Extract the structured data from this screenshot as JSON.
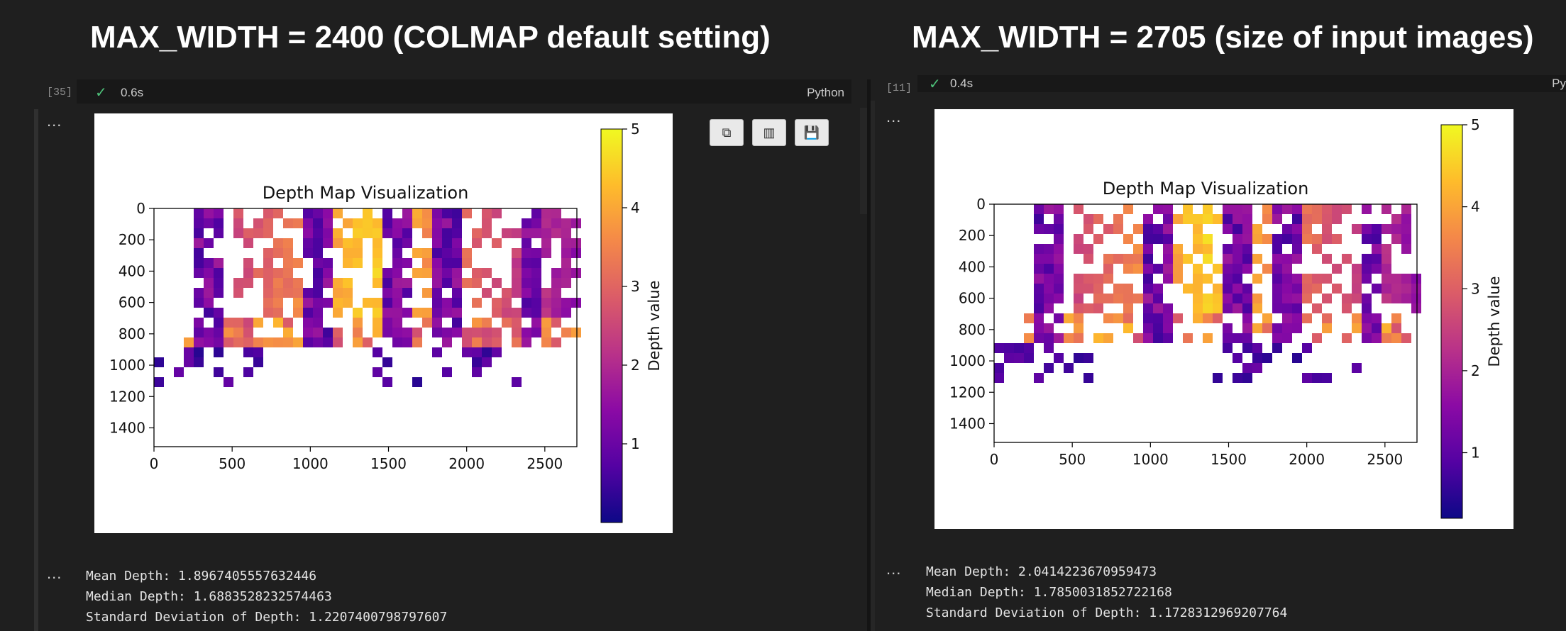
{
  "panels": [
    {
      "heading": "MAX_WIDTH = 2400 (COLMAP default setting)",
      "exec_count": "[35]",
      "run_time": "0.6s",
      "kernel": "Python",
      "stats": [
        "Mean Depth: 1.8967405557632446",
        "Median Depth: 1.6883528232574463",
        "Standard Deviation of Depth: 1.2207400798797607"
      ],
      "toolbar": {
        "copy": "copy-icon",
        "chart": "chart-icon",
        "save": "save-icon"
      }
    },
    {
      "heading": "MAX_WIDTH = 2705 (size of input images)",
      "exec_count": "[11]",
      "run_time": "0.4s",
      "kernel": "Py",
      "stats": [
        "Mean Depth: 2.0414223670959473",
        "Median Depth: 1.7850031852722168",
        "Standard Deviation of Depth: 1.1728312969207764"
      ]
    }
  ],
  "output_marker": "...",
  "chart_data": [
    {
      "type": "heatmap",
      "title": "Depth Map Visualization",
      "colormap": "plasma",
      "colorbar_label": "Depth value",
      "x_ticks": [
        0,
        500,
        1000,
        1500,
        2000,
        2500
      ],
      "y_ticks": [
        0,
        200,
        400,
        600,
        800,
        1000,
        1200,
        1400
      ],
      "xlim": [
        0,
        2705
      ],
      "ylim": [
        1520,
        0
      ],
      "colorbar_ticks": [
        1,
        2,
        3,
        4,
        5
      ],
      "colorbar_range": [
        0,
        5
      ]
    },
    {
      "type": "heatmap",
      "title": "Depth Map Visualization",
      "colormap": "plasma",
      "colorbar_label": "Depth value",
      "x_ticks": [
        0,
        500,
        1000,
        1500,
        2000,
        2500
      ],
      "y_ticks": [
        0,
        200,
        400,
        600,
        800,
        1000,
        1200,
        1400
      ],
      "xlim": [
        0,
        2705
      ],
      "ylim": [
        1520,
        0
      ],
      "colorbar_ticks": [
        1,
        2,
        3,
        4,
        5
      ],
      "colorbar_range": [
        0.2,
        5
      ]
    }
  ],
  "colors": {
    "background": "#1f1f1f",
    "success": "#4ec27a",
    "plasma_low": "#0d0887",
    "plasma_mid": "#cc4778",
    "plasma_high": "#f0f921"
  }
}
